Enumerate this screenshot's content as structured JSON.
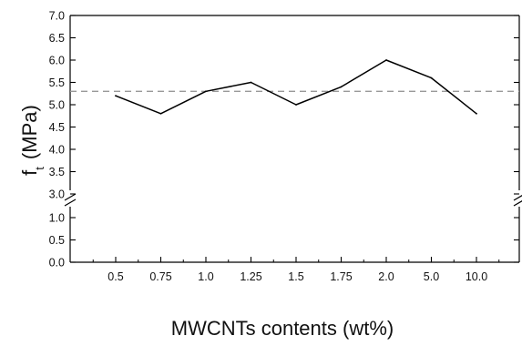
{
  "chart_data": {
    "type": "line",
    "title": "",
    "xlabel": "MWCNTs contents (wt%)",
    "ylabel": "f",
    "ylabel_subscript": "t",
    "ylabel_unit": "(MPa)",
    "categories": [
      "0.5",
      "0.75",
      "1.0",
      "1.25",
      "1.5",
      "1.75",
      "2.0",
      "5.0",
      "10.0"
    ],
    "series": [
      {
        "values": [
          5.2,
          4.8,
          5.3,
          5.5,
          5.0,
          5.4,
          6.0,
          5.6,
          4.8
        ],
        "color": "#000000"
      }
    ],
    "reference_line": {
      "value": 5.3,
      "style": "dashed",
      "color": "#999999"
    },
    "y_axis_break": {
      "lower": [
        0.0,
        1.0
      ],
      "upper": [
        3.0,
        7.0
      ]
    },
    "yticks_lower": [
      "0.0",
      "0.5",
      "1.0"
    ],
    "yticks_upper": [
      "3.0",
      "3.5",
      "4.0",
      "4.5",
      "5.0",
      "5.5",
      "6.0",
      "6.5",
      "7.0"
    ],
    "grid": false,
    "legend": "none"
  }
}
